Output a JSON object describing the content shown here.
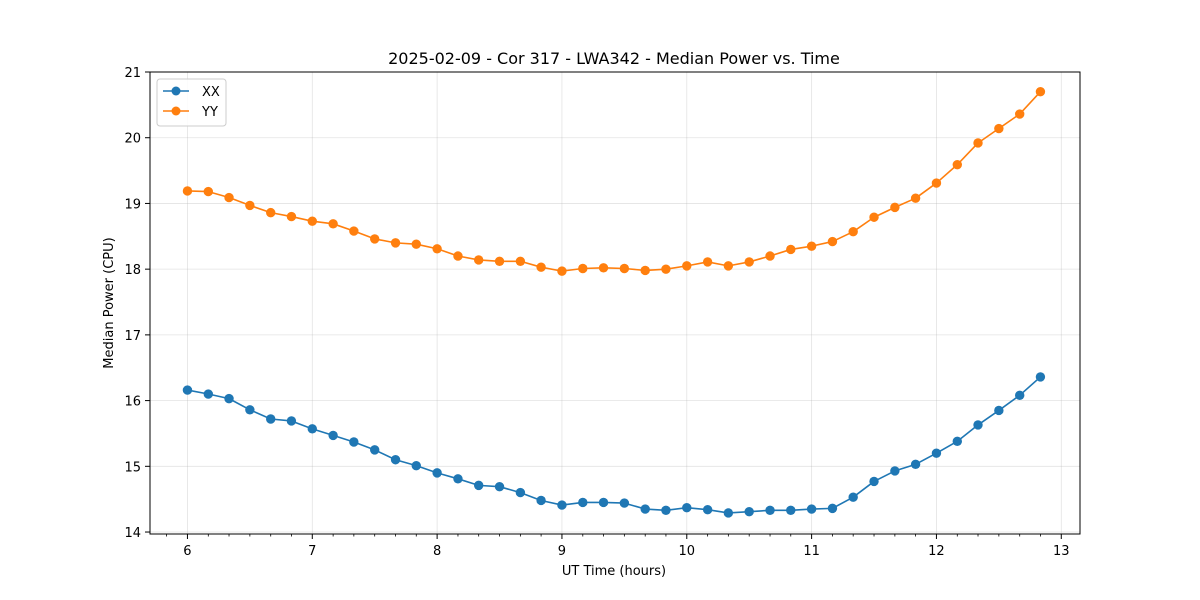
{
  "chart_data": {
    "type": "line",
    "title": "2025-02-09 - Cor 317 - LWA342 - Median Power vs. Time",
    "xlabel": "UT Time (hours)",
    "ylabel": "Median Power (CPU)",
    "xlim": [
      5.7,
      13.15
    ],
    "ylim": [
      13.97,
      21.0
    ],
    "xticks": [
      6,
      7,
      8,
      9,
      10,
      11,
      12,
      13
    ],
    "yticks": [
      14,
      15,
      16,
      17,
      18,
      19,
      20,
      21
    ],
    "grid": true,
    "legend_position": "top-left",
    "x": [
      6.0,
      6.167,
      6.333,
      6.5,
      6.667,
      6.833,
      7.0,
      7.167,
      7.333,
      7.5,
      7.667,
      7.833,
      8.0,
      8.167,
      8.333,
      8.5,
      8.667,
      8.833,
      9.0,
      9.167,
      9.333,
      9.5,
      9.667,
      9.833,
      10.0,
      10.167,
      10.333,
      10.5,
      10.667,
      10.833,
      11.0,
      11.167,
      11.333,
      11.5,
      11.667,
      11.833,
      12.0,
      12.167,
      12.333,
      12.5,
      12.667,
      12.833
    ],
    "series": [
      {
        "name": "XX",
        "color": "#1f77b4",
        "values": [
          16.16,
          16.1,
          16.03,
          15.86,
          15.72,
          15.69,
          15.57,
          15.47,
          15.37,
          15.25,
          15.1,
          15.01,
          14.9,
          14.81,
          14.71,
          14.69,
          14.6,
          14.48,
          14.41,
          14.45,
          14.45,
          14.44,
          14.35,
          14.33,
          14.37,
          14.34,
          14.29,
          14.31,
          14.33,
          14.33,
          14.35,
          14.36,
          14.53,
          14.77,
          14.93,
          15.03,
          15.2,
          15.38,
          15.63,
          15.85,
          16.08,
          16.36
        ]
      },
      {
        "name": "YY",
        "color": "#ff7f0e",
        "values": [
          19.19,
          19.18,
          19.09,
          18.97,
          18.86,
          18.8,
          18.73,
          18.69,
          18.58,
          18.46,
          18.4,
          18.38,
          18.31,
          18.2,
          18.14,
          18.12,
          18.12,
          18.03,
          17.97,
          18.01,
          18.02,
          18.01,
          17.98,
          18.0,
          18.05,
          18.11,
          18.05,
          18.11,
          18.2,
          18.3,
          18.35,
          18.42,
          18.57,
          18.79,
          18.94,
          19.08,
          19.31,
          19.59,
          19.92,
          20.14,
          20.36,
          20.7
        ]
      }
    ]
  }
}
